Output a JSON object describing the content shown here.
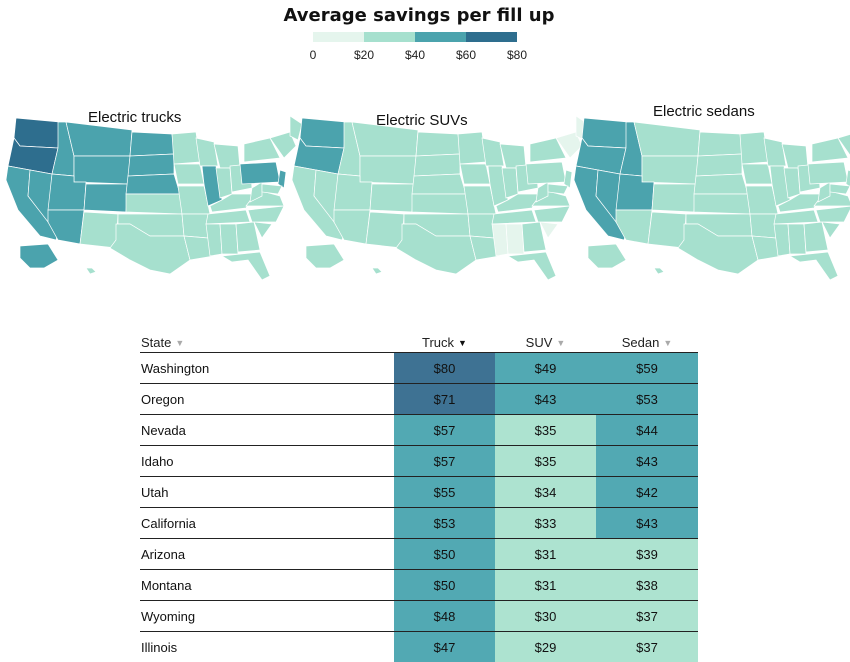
{
  "title": "Average savings per fill up",
  "legend": {
    "ticks": [
      "0",
      "$20",
      "$40",
      "$60",
      "$80"
    ],
    "colors": [
      "#e5f5ed",
      "#a6e0ce",
      "#4ba3ad",
      "#2e6e8e"
    ]
  },
  "colors": {
    "very_light": "#e5f5ed",
    "light": "#a6e0ce",
    "mid": "#4ba3ad",
    "dark": "#2e6e8e",
    "table_light": "#ade3d0",
    "table_mid": "#52a9b3",
    "table_dark": "#3e7293"
  },
  "maps": [
    {
      "title": "Electric trucks"
    },
    {
      "title": "Electric SUVs"
    },
    {
      "title": "Electric sedans"
    }
  ],
  "table": {
    "headers": {
      "state": "State",
      "truck": "Truck",
      "suv": "SUV",
      "sedan": "Sedan"
    },
    "sort": {
      "column": "truck",
      "direction": "descending"
    }
  },
  "chart_data": {
    "type": "table",
    "title": "Average savings per fill up",
    "columns": [
      "State",
      "Truck",
      "SUV",
      "Sedan"
    ],
    "rows": [
      {
        "state": "Washington",
        "truck": 80,
        "suv": 49,
        "sedan": 59
      },
      {
        "state": "Oregon",
        "truck": 71,
        "suv": 43,
        "sedan": 53
      },
      {
        "state": "Nevada",
        "truck": 57,
        "suv": 35,
        "sedan": 44
      },
      {
        "state": "Idaho",
        "truck": 57,
        "suv": 35,
        "sedan": 43
      },
      {
        "state": "Utah",
        "truck": 55,
        "suv": 34,
        "sedan": 42
      },
      {
        "state": "California",
        "truck": 53,
        "suv": 33,
        "sedan": 43
      },
      {
        "state": "Arizona",
        "truck": 50,
        "suv": 31,
        "sedan": 39
      },
      {
        "state": "Montana",
        "truck": 50,
        "suv": 31,
        "sedan": 38
      },
      {
        "state": "Wyoming",
        "truck": 48,
        "suv": 30,
        "sedan": 37
      },
      {
        "state": "Illinois",
        "truck": 47,
        "suv": 29,
        "sedan": 37
      }
    ],
    "color_bins": [
      {
        "range": [
          0,
          20
        ],
        "color": "#e5f5ed"
      },
      {
        "range": [
          20,
          40
        ],
        "color": "#a6e0ce"
      },
      {
        "range": [
          40,
          60
        ],
        "color": "#4ba3ad"
      },
      {
        "range": [
          60,
          80
        ],
        "color": "#2e6e8e"
      }
    ]
  }
}
